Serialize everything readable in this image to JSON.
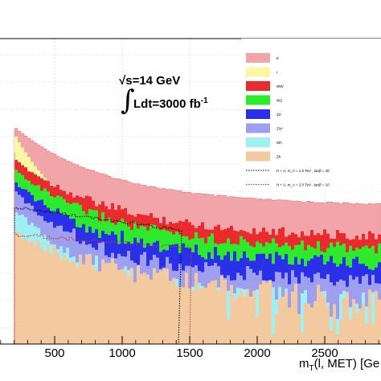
{
  "chart_data": {
    "type": "histogram-stacked",
    "x_axis": {
      "label": "m_T(l, MET) [GeV]",
      "label_main": "m",
      "label_sub": "T",
      "label_rest": "(l, MET) [Ge",
      "xlim": [
        0,
        3200
      ],
      "ticks": [
        500,
        1000,
        1500,
        2000,
        2500
      ]
    },
    "annotations": {
      "energy": "√s=14 GeV",
      "lumi_integral": "∫",
      "lumi": "Ldt=3000 fb",
      "lumi_sup": "-1"
    },
    "legend": {
      "placement": "top-right",
      "entries": [
        {
          "label": "tt",
          "color": "#f2a5a8",
          "style": "fill"
        },
        {
          "label": "t",
          "color": "#fdf7a4",
          "style": "fill"
        },
        {
          "label": "WW",
          "color": "#ea2a2d",
          "style": "fill"
        },
        {
          "label": "WZ",
          "color": "#2dea2a",
          "style": "fill"
        },
        {
          "label": "ZZ",
          "color": "#2a30ea",
          "style": "fill"
        },
        {
          "label": "Z/γ*",
          "color": "#9f9ff0",
          "style": "fill"
        },
        {
          "label": "Wh",
          "color": "#9ff0f3",
          "style": "fill"
        },
        {
          "label": "Zh",
          "color": "#f3c99f",
          "style": "fill"
        },
        {
          "label": "H + A,  m_A = 1.5  TeV ,  tanβ = 40",
          "color": "#000000",
          "style": "dotted"
        },
        {
          "label": "H + A,  m_A = 2.0  TeV ,  tanβ = 10",
          "color": "#c0392b",
          "style": "dotted"
        }
      ]
    },
    "series_colors": {
      "tt": "#f2a5a8",
      "t": "#fdf7a4",
      "WW": "#ea2a2d",
      "WZ": "#2dea2a",
      "ZZ": "#2a30ea",
      "Zgamma": "#9f9ff0",
      "Wh": "#9ff0f3",
      "Zh": "#f3c99f",
      "signal15": "#000000",
      "signal20": "#c0392b"
    },
    "grid": true,
    "y_scale": "log"
  }
}
